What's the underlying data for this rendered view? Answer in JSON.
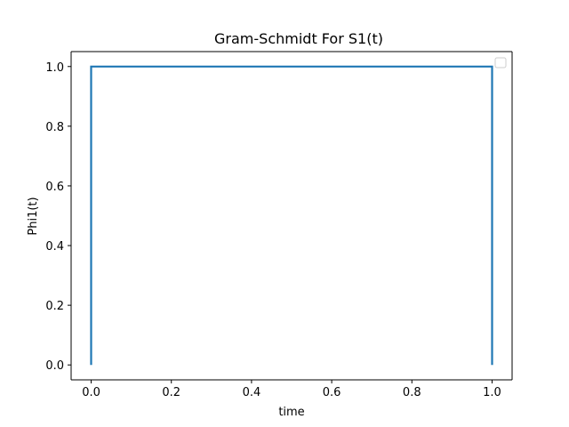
{
  "chart_data": {
    "type": "line",
    "title": "Gram-Schmidt For S1(t)",
    "xlabel": "time",
    "ylabel": "Phi1(t)",
    "xlim": [
      -0.05,
      1.05
    ],
    "ylim": [
      -0.05,
      1.05
    ],
    "x_ticks": [
      "0.0",
      "0.2",
      "0.4",
      "0.6",
      "0.8",
      "1.0"
    ],
    "y_ticks": [
      "0.0",
      "0.2",
      "0.4",
      "0.6",
      "0.8",
      "1.0"
    ],
    "grid": false,
    "legend": "top-right (empty)",
    "series": [
      {
        "color": "#1f77b4",
        "x": [
          0.0,
          0.0,
          1.0,
          1.0
        ],
        "y": [
          0.0,
          1.0,
          1.0,
          0.0
        ]
      }
    ]
  }
}
